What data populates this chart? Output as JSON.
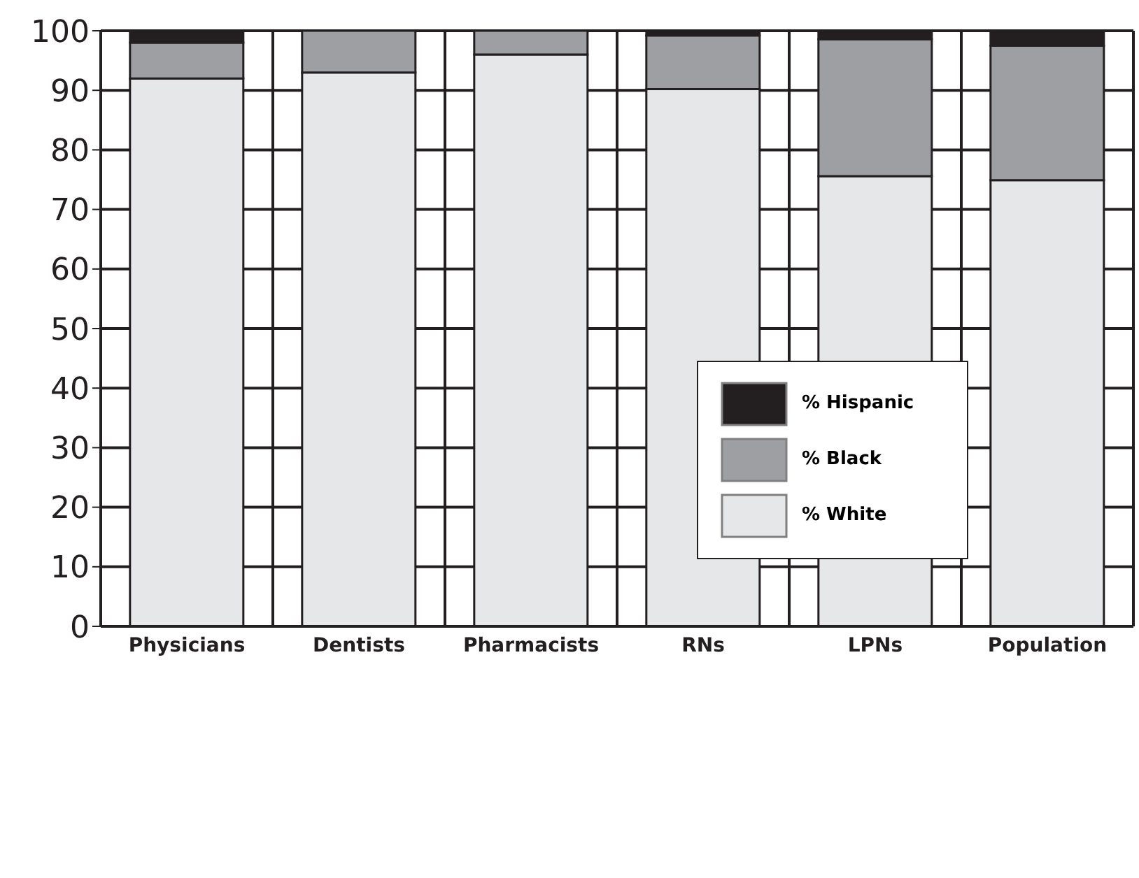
{
  "chart_data": {
    "type": "bar",
    "stacked": true,
    "categories": [
      "Physicians",
      "Dentists",
      "Pharmacists",
      "RNs",
      "LPNs",
      "Population"
    ],
    "series": [
      {
        "name": "% White",
        "color": "#e6e7e9",
        "values": [
          92,
          93,
          96,
          90.2,
          75.6,
          74.9
        ]
      },
      {
        "name": "% Black",
        "color": "#9d9fa2",
        "values": [
          6,
          7,
          4,
          9,
          23,
          22.6
        ]
      },
      {
        "name": "% Hispanic",
        "color": "#231f20",
        "values": [
          2,
          0,
          0,
          0.8,
          1.4,
          2.5
        ]
      }
    ],
    "ylim": [
      0,
      100
    ],
    "yticks": [
      0,
      10,
      20,
      30,
      40,
      50,
      60,
      70,
      80,
      90,
      100
    ],
    "grid": true,
    "legend": "right"
  }
}
